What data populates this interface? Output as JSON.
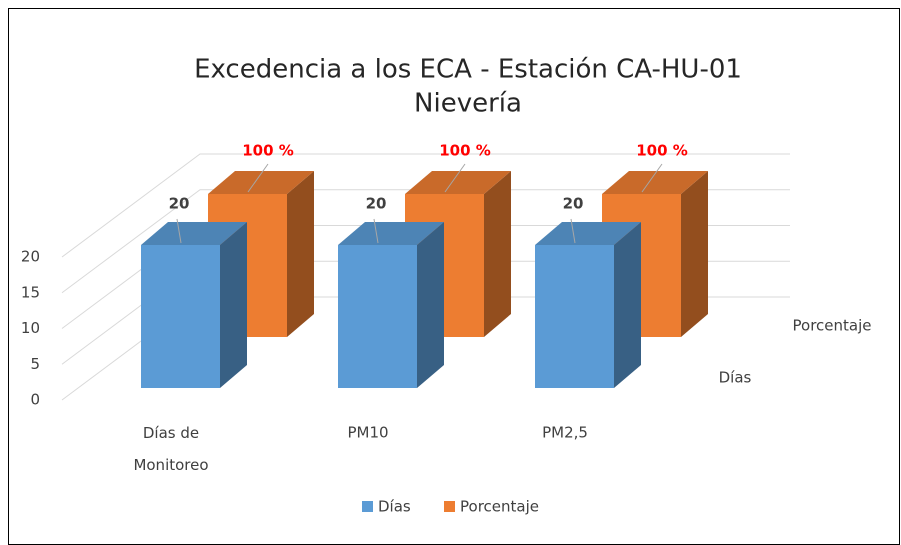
{
  "chart_data": {
    "type": "bar3d",
    "title": [
      "Excedencia a los ECA - Estación CA-HU-01",
      "Nievería"
    ],
    "categories": [
      "Días de Monitoreo",
      "PM10",
      "PM2,5"
    ],
    "series": [
      {
        "name": "Días",
        "color": "#5b9bd5",
        "values": [
          20,
          20,
          20
        ]
      },
      {
        "name": "Porcentaje",
        "color": "#ed7d31",
        "values": [
          20,
          20,
          20
        ]
      }
    ],
    "annotations": [
      "100 %",
      "100 %",
      "100 %"
    ],
    "ylim": [
      0,
      20
    ],
    "yticks": [
      0,
      5,
      10,
      15,
      20
    ],
    "grid": true
  }
}
